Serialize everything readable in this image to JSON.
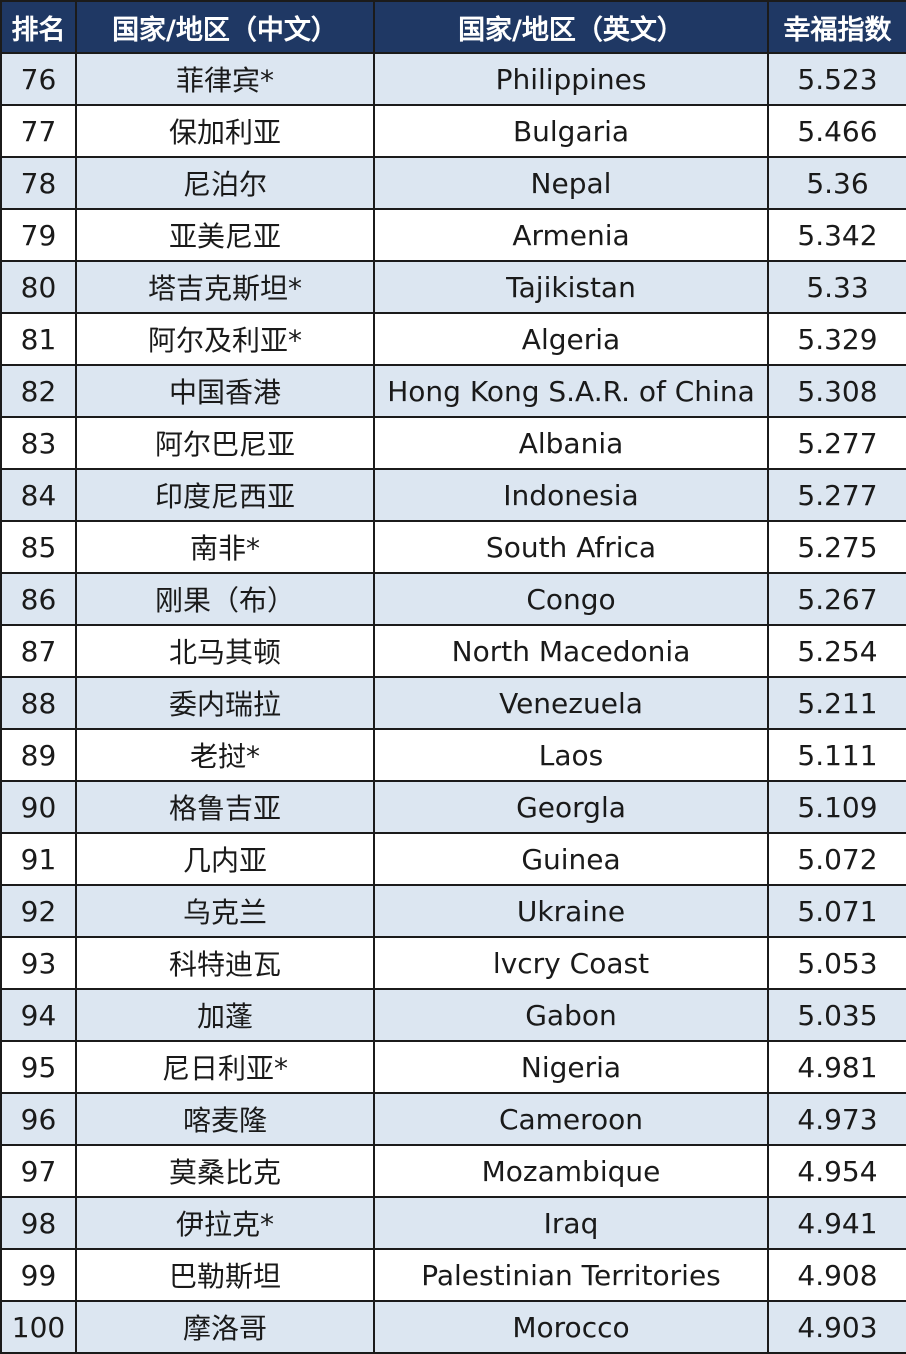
{
  "table": {
    "headers": {
      "rank": "排名",
      "name_cn": "国家/地区（中文）",
      "name_en": "国家/地区（英文）",
      "score": "幸福指数"
    },
    "rows": [
      {
        "rank": "76",
        "cn": "菲律宾*",
        "en": "Philippines",
        "score": "5.523"
      },
      {
        "rank": "77",
        "cn": "保加利亚",
        "en": "Bulgaria",
        "score": "5.466"
      },
      {
        "rank": "78",
        "cn": "尼泊尔",
        "en": "Nepal",
        "score": "5.36"
      },
      {
        "rank": "79",
        "cn": "亚美尼亚",
        "en": "Armenia",
        "score": "5.342"
      },
      {
        "rank": "80",
        "cn": "塔吉克斯坦*",
        "en": "Tajikistan",
        "score": "5.33"
      },
      {
        "rank": "81",
        "cn": "阿尔及利亚*",
        "en": "Algeria",
        "score": "5.329"
      },
      {
        "rank": "82",
        "cn": "中国香港",
        "en": "Hong Kong S.A.R. of China",
        "score": "5.308"
      },
      {
        "rank": "83",
        "cn": "阿尔巴尼亚",
        "en": "Albania",
        "score": "5.277"
      },
      {
        "rank": "84",
        "cn": "印度尼西亚",
        "en": "Indonesia",
        "score": "5.277"
      },
      {
        "rank": "85",
        "cn": "南非*",
        "en": "South Africa",
        "score": "5.275"
      },
      {
        "rank": "86",
        "cn": "刚果（布）",
        "en": "Congo",
        "score": "5.267"
      },
      {
        "rank": "87",
        "cn": "北马其顿",
        "en": "North Macedonia",
        "score": "5.254"
      },
      {
        "rank": "88",
        "cn": "委内瑞拉",
        "en": "Venezuela",
        "score": "5.211"
      },
      {
        "rank": "89",
        "cn": "老挝*",
        "en": "Laos",
        "score": "5.111"
      },
      {
        "rank": "90",
        "cn": "格鲁吉亚",
        "en": "Georgla",
        "score": "5.109"
      },
      {
        "rank": "91",
        "cn": "几内亚",
        "en": "Guinea",
        "score": "5.072"
      },
      {
        "rank": "92",
        "cn": "乌克兰",
        "en": "Ukraine",
        "score": "5.071"
      },
      {
        "rank": "93",
        "cn": "科特迪瓦",
        "en": "lvcry Coast",
        "score": "5.053"
      },
      {
        "rank": "94",
        "cn": "加蓬",
        "en": "Gabon",
        "score": "5.035"
      },
      {
        "rank": "95",
        "cn": "尼日利亚*",
        "en": "Nigeria",
        "score": "4.981"
      },
      {
        "rank": "96",
        "cn": "喀麦隆",
        "en": "Cameroon",
        "score": "4.973"
      },
      {
        "rank": "97",
        "cn": "莫桑比克",
        "en": "Mozambique",
        "score": "4.954"
      },
      {
        "rank": "98",
        "cn": "伊拉克*",
        "en": "Iraq",
        "score": "4.941"
      },
      {
        "rank": "99",
        "cn": "巴勒斯坦",
        "en": "Palestinian Territories",
        "score": "4.908"
      },
      {
        "rank": "100",
        "cn": "摩洛哥",
        "en": "Morocco",
        "score": "4.903"
      }
    ]
  },
  "colors": {
    "header_bg": "#1f3864",
    "header_text": "#ffffff",
    "odd_row_bg": "#dce6f1",
    "even_row_bg": "#ffffff",
    "border": "#1b1b1b"
  }
}
